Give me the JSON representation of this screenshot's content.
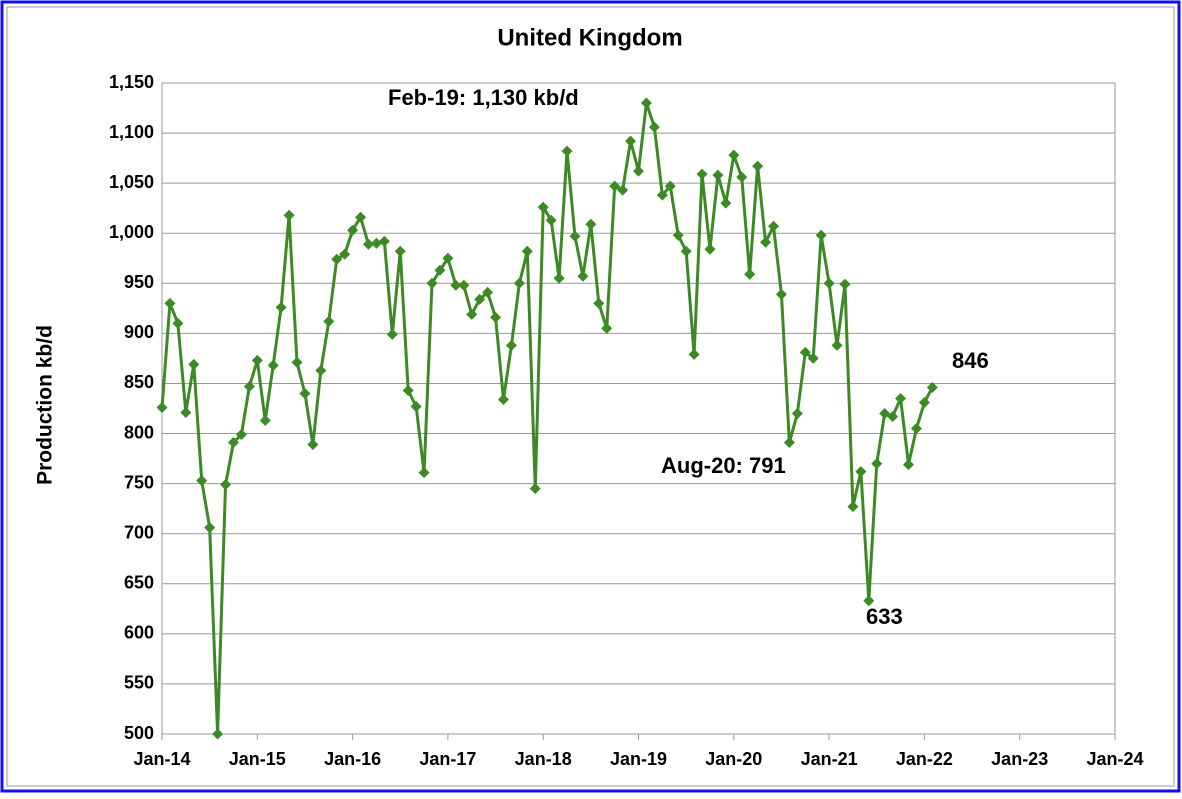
{
  "chart_data": {
    "type": "line",
    "title": "United Kingdom",
    "y_label": "Production kb/d",
    "annotations": [
      "Feb-19: 1,130 kb/d",
      "Aug-20: 791",
      "633",
      "846"
    ],
    "x": [
      "2014-01",
      "2014-02",
      "2014-03",
      "2014-04",
      "2014-05",
      "2014-06",
      "2014-07",
      "2014-08",
      "2014-09",
      "2014-10",
      "2014-11",
      "2014-12",
      "2015-01",
      "2015-02",
      "2015-03",
      "2015-04",
      "2015-05",
      "2015-06",
      "2015-07",
      "2015-08",
      "2015-09",
      "2015-10",
      "2015-11",
      "2015-12",
      "2016-01",
      "2016-02",
      "2016-03",
      "2016-04",
      "2016-05",
      "2016-06",
      "2016-07",
      "2016-08",
      "2016-09",
      "2016-10",
      "2016-11",
      "2016-12",
      "2017-01",
      "2017-02",
      "2017-03",
      "2017-04",
      "2017-05",
      "2017-06",
      "2017-07",
      "2017-08",
      "2017-09",
      "2017-10",
      "2017-11",
      "2017-12",
      "2018-01",
      "2018-02",
      "2018-03",
      "2018-04",
      "2018-05",
      "2018-06",
      "2018-07",
      "2018-08",
      "2018-09",
      "2018-10",
      "2018-11",
      "2018-12",
      "2019-01",
      "2019-02",
      "2019-03",
      "2019-04",
      "2019-05",
      "2019-06",
      "2019-07",
      "2019-08",
      "2019-09",
      "2019-10",
      "2019-11",
      "2019-12",
      "2020-01",
      "2020-02",
      "2020-03",
      "2020-04",
      "2020-05",
      "2020-06",
      "2020-07",
      "2020-08",
      "2020-09",
      "2020-10",
      "2020-11",
      "2020-12",
      "2021-01",
      "2021-02",
      "2021-03",
      "2021-04",
      "2021-05",
      "2021-06",
      "2021-07",
      "2021-08",
      "2021-09",
      "2021-10",
      "2021-11",
      "2021-12",
      "2022-01",
      "2022-02"
    ],
    "series": [
      {
        "name": "United Kingdom",
        "color": "#3c8a24",
        "values": [
          826,
          930,
          910,
          821,
          869,
          753,
          706,
          500,
          749,
          791,
          799,
          847,
          873,
          813,
          868,
          926,
          1018,
          871,
          840,
          789,
          863,
          912,
          974,
          979,
          1003,
          1016,
          989,
          990,
          992,
          899,
          982,
          843,
          827,
          761,
          950,
          963,
          975,
          948,
          948,
          919,
          934,
          941,
          916,
          834,
          888,
          950,
          982,
          745,
          1026,
          1013,
          955,
          1082,
          997,
          957,
          1009,
          930,
          905,
          1047,
          1043,
          1092,
          1062,
          1130,
          1106,
          1038,
          1047,
          998,
          982,
          879,
          1059,
          984,
          1058,
          1030,
          1078,
          1056,
          959,
          1067,
          991,
          1007,
          939,
          791,
          820,
          881,
          875,
          998,
          950,
          888,
          949,
          727,
          762,
          633,
          770,
          820,
          817,
          835,
          769,
          805,
          831,
          846
        ]
      }
    ],
    "xlim": [
      "2014-01",
      "2024-01"
    ],
    "xticks": [
      {
        "value": "2014-01",
        "label": "Jan-14"
      },
      {
        "value": "2015-01",
        "label": "Jan-15"
      },
      {
        "value": "2016-01",
        "label": "Jan-16"
      },
      {
        "value": "2017-01",
        "label": "Jan-17"
      },
      {
        "value": "2018-01",
        "label": "Jan-18"
      },
      {
        "value": "2019-01",
        "label": "Jan-19"
      },
      {
        "value": "2020-01",
        "label": "Jan-20"
      },
      {
        "value": "2021-01",
        "label": "Jan-21"
      },
      {
        "value": "2022-01",
        "label": "Jan-22"
      },
      {
        "value": "2023-01",
        "label": "Jan-23"
      },
      {
        "value": "2024-01",
        "label": "Jan-24"
      }
    ],
    "ylim": [
      500,
      1150
    ],
    "yticks": [
      500,
      550,
      600,
      650,
      700,
      750,
      800,
      850,
      900,
      950,
      {
        "value": 1000,
        "label": "1,000"
      },
      {
        "value": 1050,
        "label": "1,050"
      },
      {
        "value": 1100,
        "label": "1,100"
      },
      {
        "value": 1150,
        "label": "1,150"
      }
    ],
    "grid": true
  }
}
